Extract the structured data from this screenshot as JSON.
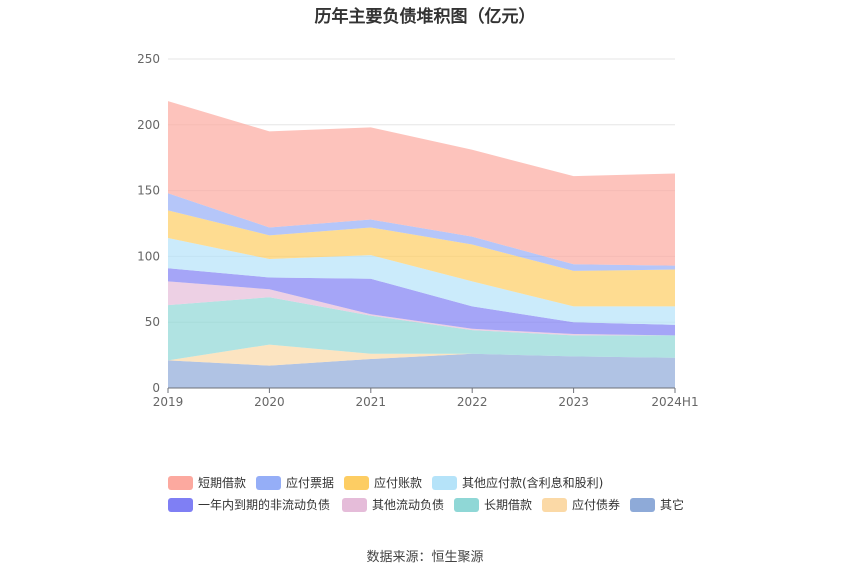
{
  "chart_data": {
    "type": "area",
    "stacked": true,
    "title": "历年主要负债堆积图（亿元）",
    "categories": [
      "2019",
      "2020",
      "2021",
      "2022",
      "2023",
      "2024H1"
    ],
    "ylim": [
      0,
      250
    ],
    "yticks": [
      0,
      50,
      100,
      150,
      200,
      250
    ],
    "grid": true,
    "legend_position": "bottom",
    "series": [
      {
        "name": "其它",
        "color": "#8eaad8",
        "values": [
          21,
          17,
          22,
          26,
          24,
          23
        ]
      },
      {
        "name": "应付债券",
        "color": "#fbd9a6",
        "values": [
          0,
          16,
          4,
          0,
          0,
          0
        ]
      },
      {
        "name": "长期借款",
        "color": "#8fd7d6",
        "values": [
          42,
          36,
          29,
          18,
          16,
          17
        ]
      },
      {
        "name": "其他流动负债",
        "color": "#e5bcd9",
        "values": [
          18,
          6,
          1,
          1,
          1,
          0
        ]
      },
      {
        "name": "一年内到期的非流动负债",
        "color": "#7f7ff4",
        "values": [
          10,
          9,
          27,
          17,
          9,
          8
        ]
      },
      {
        "name": "其他应付款(含利息和股利)",
        "color": "#b5e3f9",
        "values": [
          23,
          14,
          18,
          19,
          12,
          14
        ]
      },
      {
        "name": "应付账款",
        "color": "#fdcd63",
        "values": [
          21,
          18,
          21,
          28,
          27,
          28
        ]
      },
      {
        "name": "应付票据",
        "color": "#95aef7",
        "values": [
          13,
          6,
          6,
          6,
          5,
          3
        ]
      },
      {
        "name": "短期借款",
        "color": "#fca99f",
        "values": [
          70,
          73,
          70,
          66,
          67,
          70
        ]
      }
    ]
  },
  "legend_order": [
    [
      "短期借款",
      "应付票据",
      "应付账款",
      "其他应付款(含利息和股利)"
    ],
    [
      "一年内到期的非流动负债",
      "其他流动负债",
      "长期借款",
      "应付债券",
      "其它"
    ]
  ],
  "source_note": "数据来源：恒生聚源"
}
